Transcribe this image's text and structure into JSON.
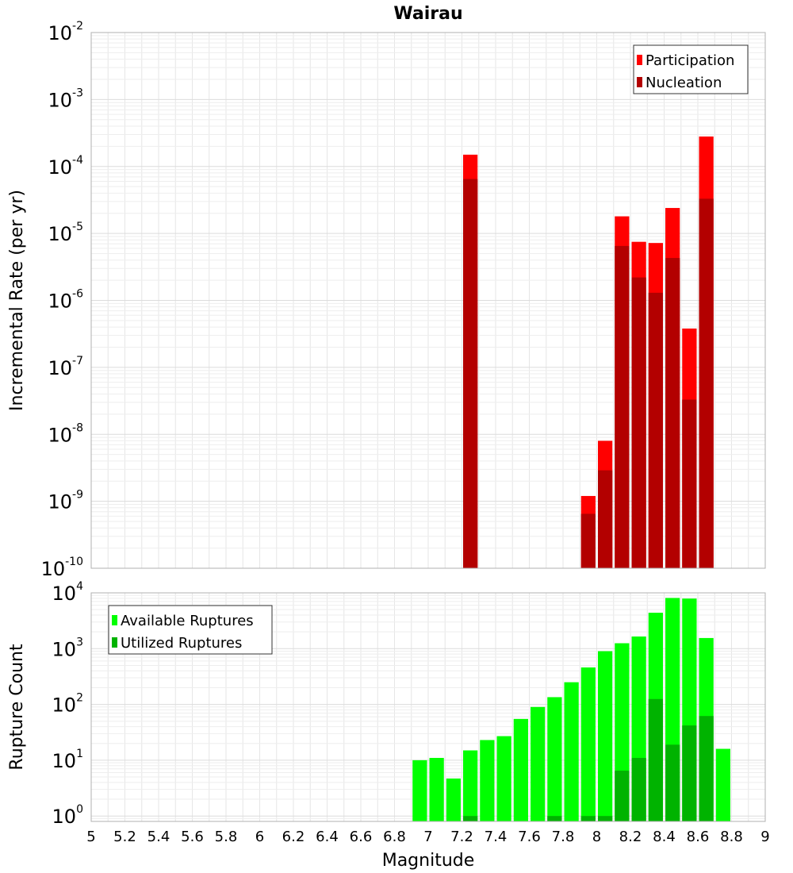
{
  "chart_data": [
    {
      "type": "bar",
      "title": "Wairau",
      "xlabel": "",
      "ylabel": "Incremental Rate (per yr)",
      "yscale": "log",
      "ylim": [
        1e-10,
        0.01
      ],
      "xlim": [
        5,
        9
      ],
      "bar_width": 0.1,
      "grid": true,
      "legend_position": "top-right",
      "y_tick_labels": [
        {
          "base": "10",
          "exp": "-10",
          "value": 1e-10
        },
        {
          "base": "10",
          "exp": "-9",
          "value": 1e-09
        },
        {
          "base": "10",
          "exp": "-8",
          "value": 1e-08
        },
        {
          "base": "10",
          "exp": "-7",
          "value": 1e-07
        },
        {
          "base": "10",
          "exp": "-6",
          "value": 1e-06
        },
        {
          "base": "10",
          "exp": "-5",
          "value": 1e-05
        },
        {
          "base": "10",
          "exp": "-4",
          "value": 0.0001
        },
        {
          "base": "10",
          "exp": "-3",
          "value": 0.001
        },
        {
          "base": "10",
          "exp": "-2",
          "value": 0.01
        }
      ],
      "series": [
        {
          "name": "Participation",
          "color": "#ff0000",
          "x": [
            7.25,
            7.95,
            8.05,
            8.15,
            8.25,
            8.35,
            8.45,
            8.55,
            8.65
          ],
          "values": [
            0.00015,
            1.2e-09,
            8e-09,
            1.8e-05,
            7.5e-06,
            7.2e-06,
            2.4e-05,
            3.8e-07,
            0.00028
          ]
        },
        {
          "name": "Nucleation",
          "color": "#b30000",
          "x": [
            7.25,
            7.95,
            8.05,
            8.15,
            8.25,
            8.35,
            8.45,
            8.55,
            8.65
          ],
          "values": [
            6.5e-05,
            6.5e-10,
            2.9e-09,
            6.5e-06,
            2.2e-06,
            1.3e-06,
            4.3e-06,
            3.3e-08,
            3.3e-05
          ]
        }
      ]
    },
    {
      "type": "bar",
      "title": "",
      "xlabel": "Magnitude",
      "ylabel": "Rupture Count",
      "yscale": "log",
      "ylim": [
        0.8,
        10000
      ],
      "xlim": [
        5,
        9
      ],
      "bar_width": 0.1,
      "grid": true,
      "legend_position": "top-left",
      "x_tick_labels": [
        "5",
        "5.2",
        "5.4",
        "5.6",
        "5.8",
        "6",
        "6.2",
        "6.4",
        "6.6",
        "6.8",
        "7",
        "7.2",
        "7.4",
        "7.6",
        "7.8",
        "8",
        "8.2",
        "8.4",
        "8.6",
        "8.8",
        "9"
      ],
      "y_tick_labels": [
        {
          "base": "10",
          "exp": "0",
          "value": 1
        },
        {
          "base": "10",
          "exp": "1",
          "value": 10
        },
        {
          "base": "10",
          "exp": "2",
          "value": 100
        },
        {
          "base": "10",
          "exp": "3",
          "value": 1000
        },
        {
          "base": "10",
          "exp": "4",
          "value": 10000
        }
      ],
      "series": [
        {
          "name": "Available Ruptures",
          "color": "#00ff00",
          "x": [
            6.95,
            7.05,
            7.15,
            7.25,
            7.35,
            7.45,
            7.55,
            7.65,
            7.75,
            7.85,
            7.95,
            8.05,
            8.15,
            8.25,
            8.35,
            8.45,
            8.55,
            8.65,
            8.75
          ],
          "values": [
            10,
            11,
            4.7,
            15,
            23,
            27,
            55,
            90,
            135,
            250,
            460,
            900,
            1250,
            1650,
            4400,
            8100,
            7900,
            1550,
            16
          ]
        },
        {
          "name": "Utilized Ruptures",
          "color": "#00b300",
          "x": [
            7.25,
            7.75,
            7.95,
            8.05,
            8.15,
            8.25,
            8.35,
            8.45,
            8.55,
            8.65
          ],
          "values": [
            1,
            1,
            1,
            1,
            6.5,
            11,
            125,
            19,
            42,
            62
          ]
        }
      ]
    }
  ]
}
